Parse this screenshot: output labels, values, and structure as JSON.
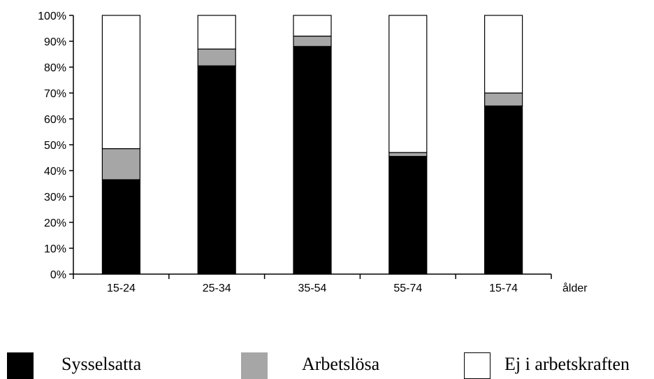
{
  "chart_data": {
    "type": "bar",
    "stacked": "percent",
    "categories": [
      "15-24",
      "25-34",
      "35-54",
      "55-74",
      "15-74"
    ],
    "series": [
      {
        "name": "Sysselsatta",
        "color": "#000000",
        "values": [
          36.5,
          80.5,
          88,
          45.5,
          65
        ]
      },
      {
        "name": "Arbetslösa",
        "color": "#a6a6a6",
        "values": [
          12,
          6.5,
          4,
          1.5,
          5
        ]
      },
      {
        "name": "Ej i arbetskraften",
        "color": "#ffffff",
        "values": [
          51.5,
          13,
          8,
          53,
          30
        ]
      }
    ],
    "title": "",
    "xlabel": "ålder",
    "ylabel": "",
    "ylim": [
      0,
      100
    ],
    "yticks": [
      "0%",
      "10%",
      "20%",
      "30%",
      "40%",
      "50%",
      "60%",
      "70%",
      "80%",
      "90%",
      "100%"
    ],
    "grid": false,
    "legend_position": "bottom"
  }
}
